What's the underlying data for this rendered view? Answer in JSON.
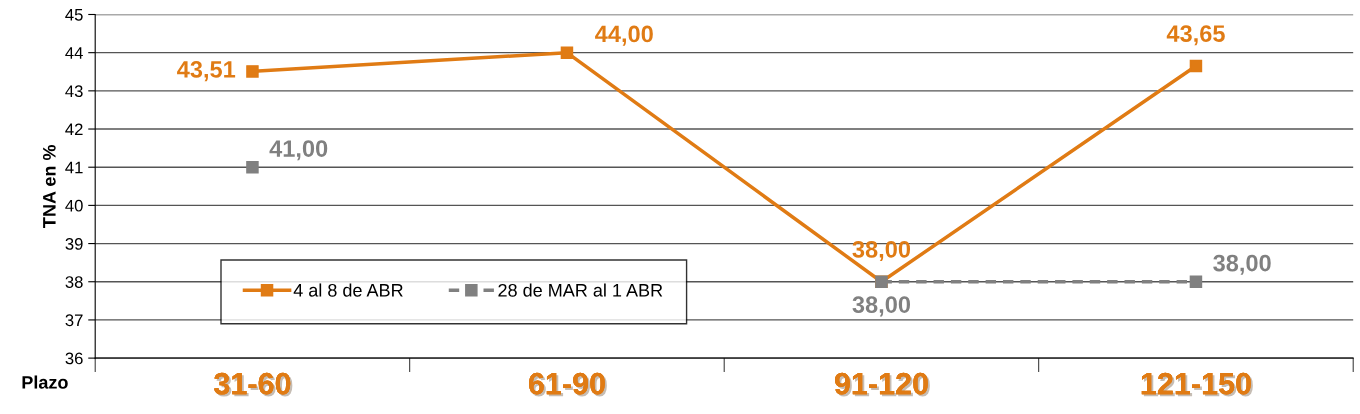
{
  "chart_data": {
    "type": "line",
    "ylabel": "TNA en %",
    "xlabel": "Plazo",
    "categories": [
      "31-60",
      "61-90",
      "91-120",
      "121-150"
    ],
    "ylim": [
      36,
      45
    ],
    "yticks": [
      36,
      37,
      38,
      39,
      40,
      41,
      42,
      43,
      44,
      45
    ],
    "grid": "y",
    "legend": "bottom left",
    "marker": "square",
    "series": [
      {
        "name": "4 al 8 de ABR",
        "color": "#e07b14",
        "line_style": "solid",
        "values": [
          43.51,
          44.0,
          38.0,
          43.65
        ],
        "value_labels": [
          "43,51",
          "44,00",
          "38,00",
          "43,65"
        ]
      },
      {
        "name": "28 de MAR al 1 ABR",
        "color": "#808080",
        "line_style": "dashed",
        "values": [
          41.0,
          null,
          38.0,
          38.0
        ],
        "value_labels": [
          "41,00",
          null,
          "38,00",
          "38,00"
        ]
      }
    ]
  }
}
